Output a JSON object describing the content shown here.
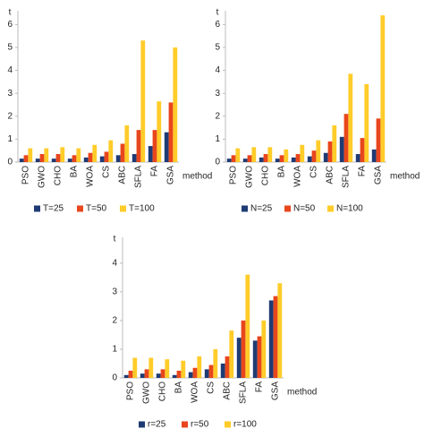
{
  "chart_data": [
    {
      "type": "bar",
      "ylabel": "t",
      "xlabel": "method",
      "categories": [
        "PSO",
        "GWO",
        "CHO",
        "BA",
        "WOA",
        "CS",
        "ABC",
        "SFLA",
        "FA",
        "GSA"
      ],
      "series": [
        {
          "name": "T=25",
          "color": "#1f3b73",
          "values": [
            0.15,
            0.15,
            0.15,
            0.15,
            0.2,
            0.25,
            0.3,
            0.35,
            0.7,
            1.3
          ]
        },
        {
          "name": "T=50",
          "color": "#e8461c",
          "values": [
            0.3,
            0.35,
            0.35,
            0.3,
            0.4,
            0.45,
            0.8,
            1.4,
            1.4,
            2.6
          ]
        },
        {
          "name": "T=100",
          "color": "#ffcc29",
          "values": [
            0.6,
            0.6,
            0.65,
            0.6,
            0.75,
            0.95,
            1.6,
            5.3,
            2.65,
            5.0
          ]
        }
      ],
      "ylim": [
        0,
        6.6
      ],
      "yticks": [
        0,
        1,
        2,
        3,
        4,
        5,
        6
      ],
      "grid": false
    },
    {
      "type": "bar",
      "ylabel": "t",
      "xlabel": "method",
      "categories": [
        "PSO",
        "GWO",
        "CHO",
        "BA",
        "WOA",
        "CS",
        "ABC",
        "SFLA",
        "FA",
        "GSA"
      ],
      "series": [
        {
          "name": "N=25",
          "color": "#1f3b73",
          "values": [
            0.15,
            0.15,
            0.2,
            0.15,
            0.2,
            0.25,
            0.4,
            1.1,
            0.35,
            0.55
          ]
        },
        {
          "name": "N=50",
          "color": "#e8461c",
          "values": [
            0.3,
            0.3,
            0.35,
            0.3,
            0.35,
            0.5,
            0.9,
            2.1,
            1.05,
            1.9
          ]
        },
        {
          "name": "N=100",
          "color": "#ffcc29",
          "values": [
            0.6,
            0.65,
            0.65,
            0.55,
            0.75,
            0.95,
            1.6,
            3.85,
            3.4,
            6.4
          ]
        }
      ],
      "ylim": [
        0,
        6.6
      ],
      "yticks": [
        0,
        1,
        2,
        3,
        4,
        5,
        6
      ],
      "grid": false
    },
    {
      "type": "bar",
      "ylabel": "t",
      "xlabel": "method",
      "categories": [
        "PSO",
        "GWO",
        "CHO",
        "BA",
        "WOA",
        "CS",
        "ABC",
        "SFLA",
        "FA",
        "GSA"
      ],
      "series": [
        {
          "name": "r=25",
          "color": "#1f3b73",
          "values": [
            0.1,
            0.15,
            0.15,
            0.1,
            0.2,
            0.3,
            0.5,
            1.4,
            1.3,
            2.7
          ]
        },
        {
          "name": "r=50",
          "color": "#e8461c",
          "values": [
            0.25,
            0.3,
            0.3,
            0.25,
            0.35,
            0.45,
            0.75,
            2.0,
            1.45,
            2.85
          ]
        },
        {
          "name": "r=100",
          "color": "#ffcc29",
          "values": [
            0.7,
            0.7,
            0.65,
            0.6,
            0.75,
            1.0,
            1.65,
            3.6,
            2.0,
            3.3
          ]
        }
      ],
      "ylim": [
        0,
        4.9
      ],
      "yticks": [
        0,
        1,
        2,
        3,
        4
      ],
      "grid": false
    }
  ]
}
